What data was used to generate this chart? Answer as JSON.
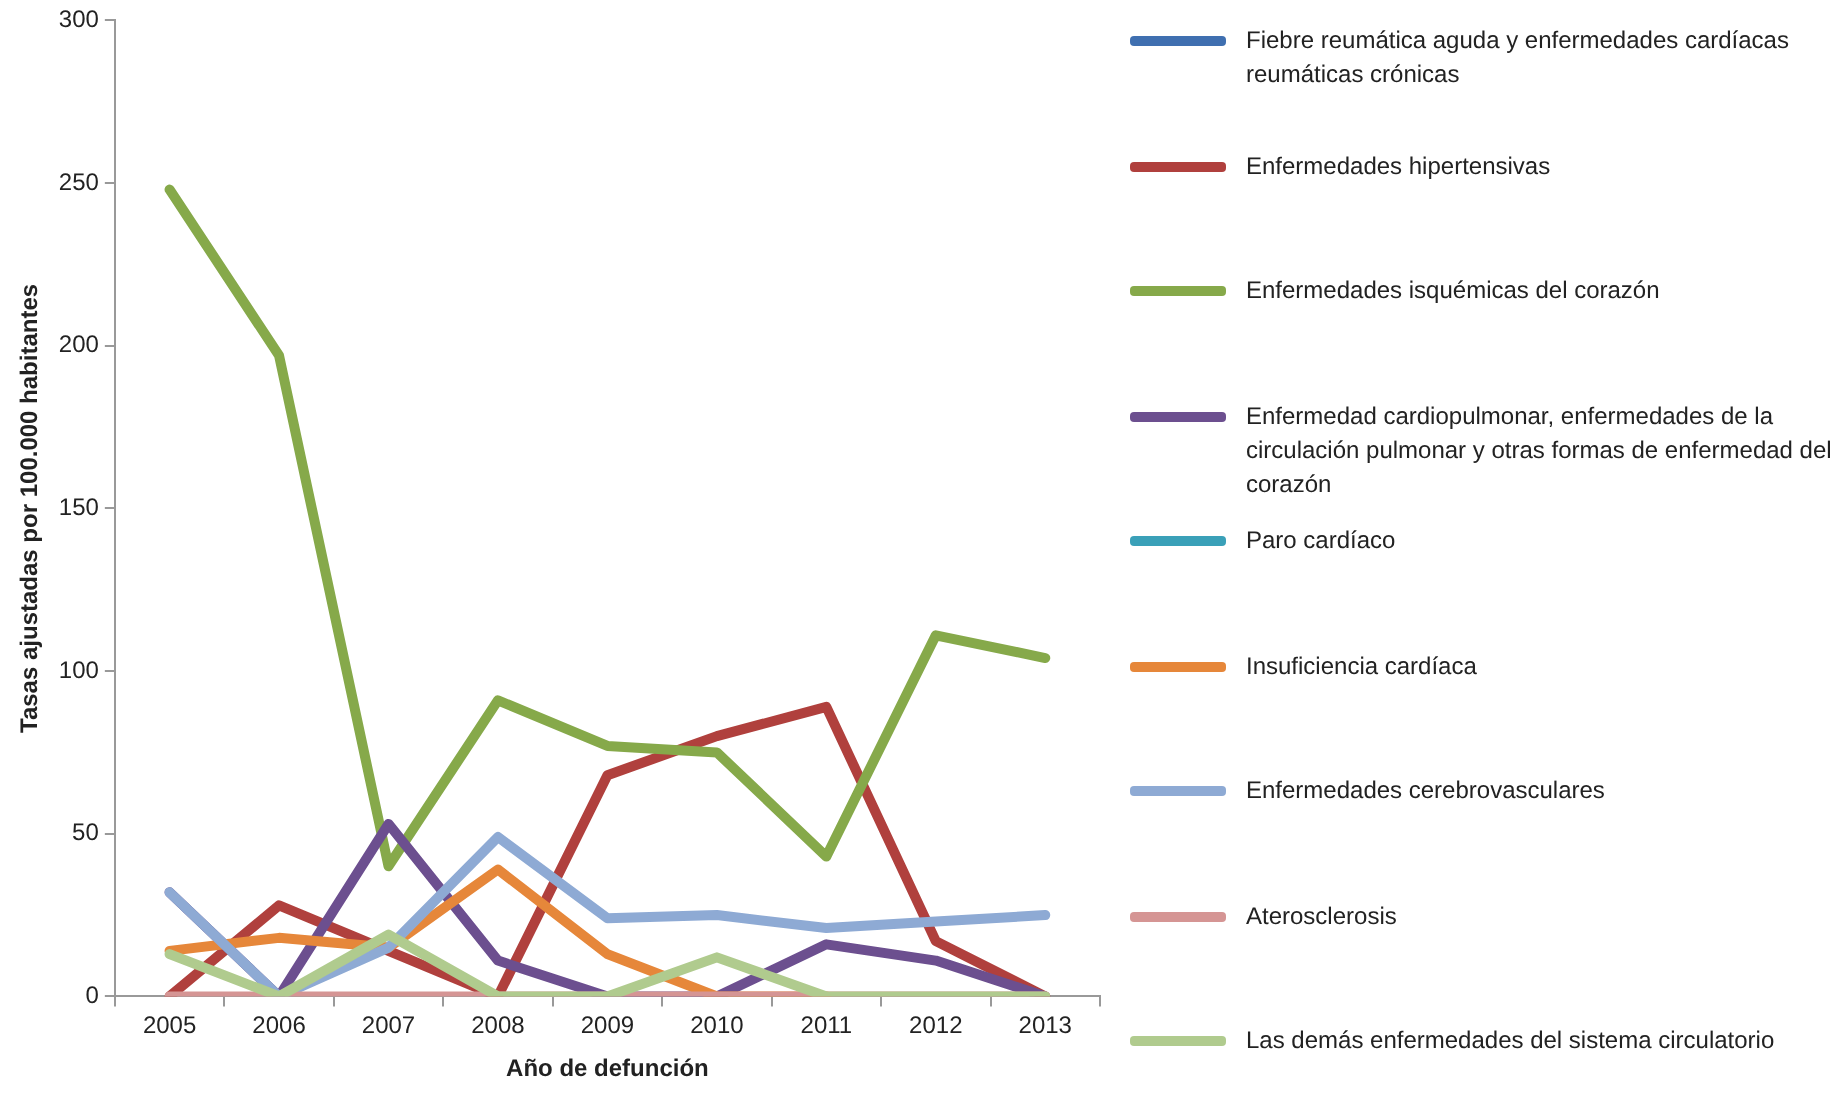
{
  "chart_data": {
    "type": "line",
    "xlabel": "Año de defunción",
    "ylabel": "Tasas ajustadas por 100.000 habitantes",
    "categories": [
      "2005",
      "2006",
      "2007",
      "2008",
      "2009",
      "2010",
      "2011",
      "2012",
      "2013"
    ],
    "ylim": [
      0,
      300
    ],
    "yticks": [
      0,
      50,
      100,
      150,
      200,
      250,
      300
    ],
    "grid": false,
    "legend": "right",
    "marker": "none",
    "line_style": "solid",
    "series": [
      {
        "name": "Fiebre reumática aguda y enfermedades cardíacas reumáticas crónicas",
        "color": "#3f6fb0",
        "values": [
          null,
          null,
          null,
          null,
          null,
          null,
          null,
          null,
          null
        ]
      },
      {
        "name": "Enfermedades hipertensivas",
        "color": "#b0403d",
        "values": [
          0,
          28,
          14,
          0,
          68,
          80,
          89,
          17,
          0
        ]
      },
      {
        "name": "Enfermedades isquémicas del corazón",
        "color": "#86a94a",
        "values": [
          248,
          197,
          40,
          91,
          77,
          75,
          43,
          111,
          104
        ]
      },
      {
        "name": "Enfermedad cardiopulmonar, enfermedades de la circulación pulmonar y otras formas de enfermedad del corazón",
        "color": "#6c4f8f",
        "values": [
          32,
          0,
          53,
          11,
          0,
          0,
          16,
          11,
          0
        ]
      },
      {
        "name": "Paro cardíaco",
        "color": "#3aa0b8",
        "values": [
          null,
          null,
          null,
          null,
          null,
          null,
          null,
          null,
          null
        ]
      },
      {
        "name": "Insuficiencia cardíaca",
        "color": "#e6873a",
        "values": [
          14,
          18,
          15,
          39,
          13,
          0,
          0,
          null,
          null
        ]
      },
      {
        "name": "Enfermedades cerebrovasculares",
        "color": "#8eaad4",
        "values": [
          32,
          0,
          15,
          49,
          24,
          25,
          21,
          23,
          25
        ]
      },
      {
        "name": "Aterosclerosis",
        "color": "#d59594",
        "values": [
          0,
          0,
          0,
          0,
          0,
          0,
          0,
          0,
          0
        ]
      },
      {
        "name": "Las demás enfermedades del sistema circulatorio",
        "color": "#b0cb8e",
        "values": [
          13,
          0,
          19,
          0,
          0,
          12,
          0,
          0,
          0
        ]
      }
    ]
  }
}
